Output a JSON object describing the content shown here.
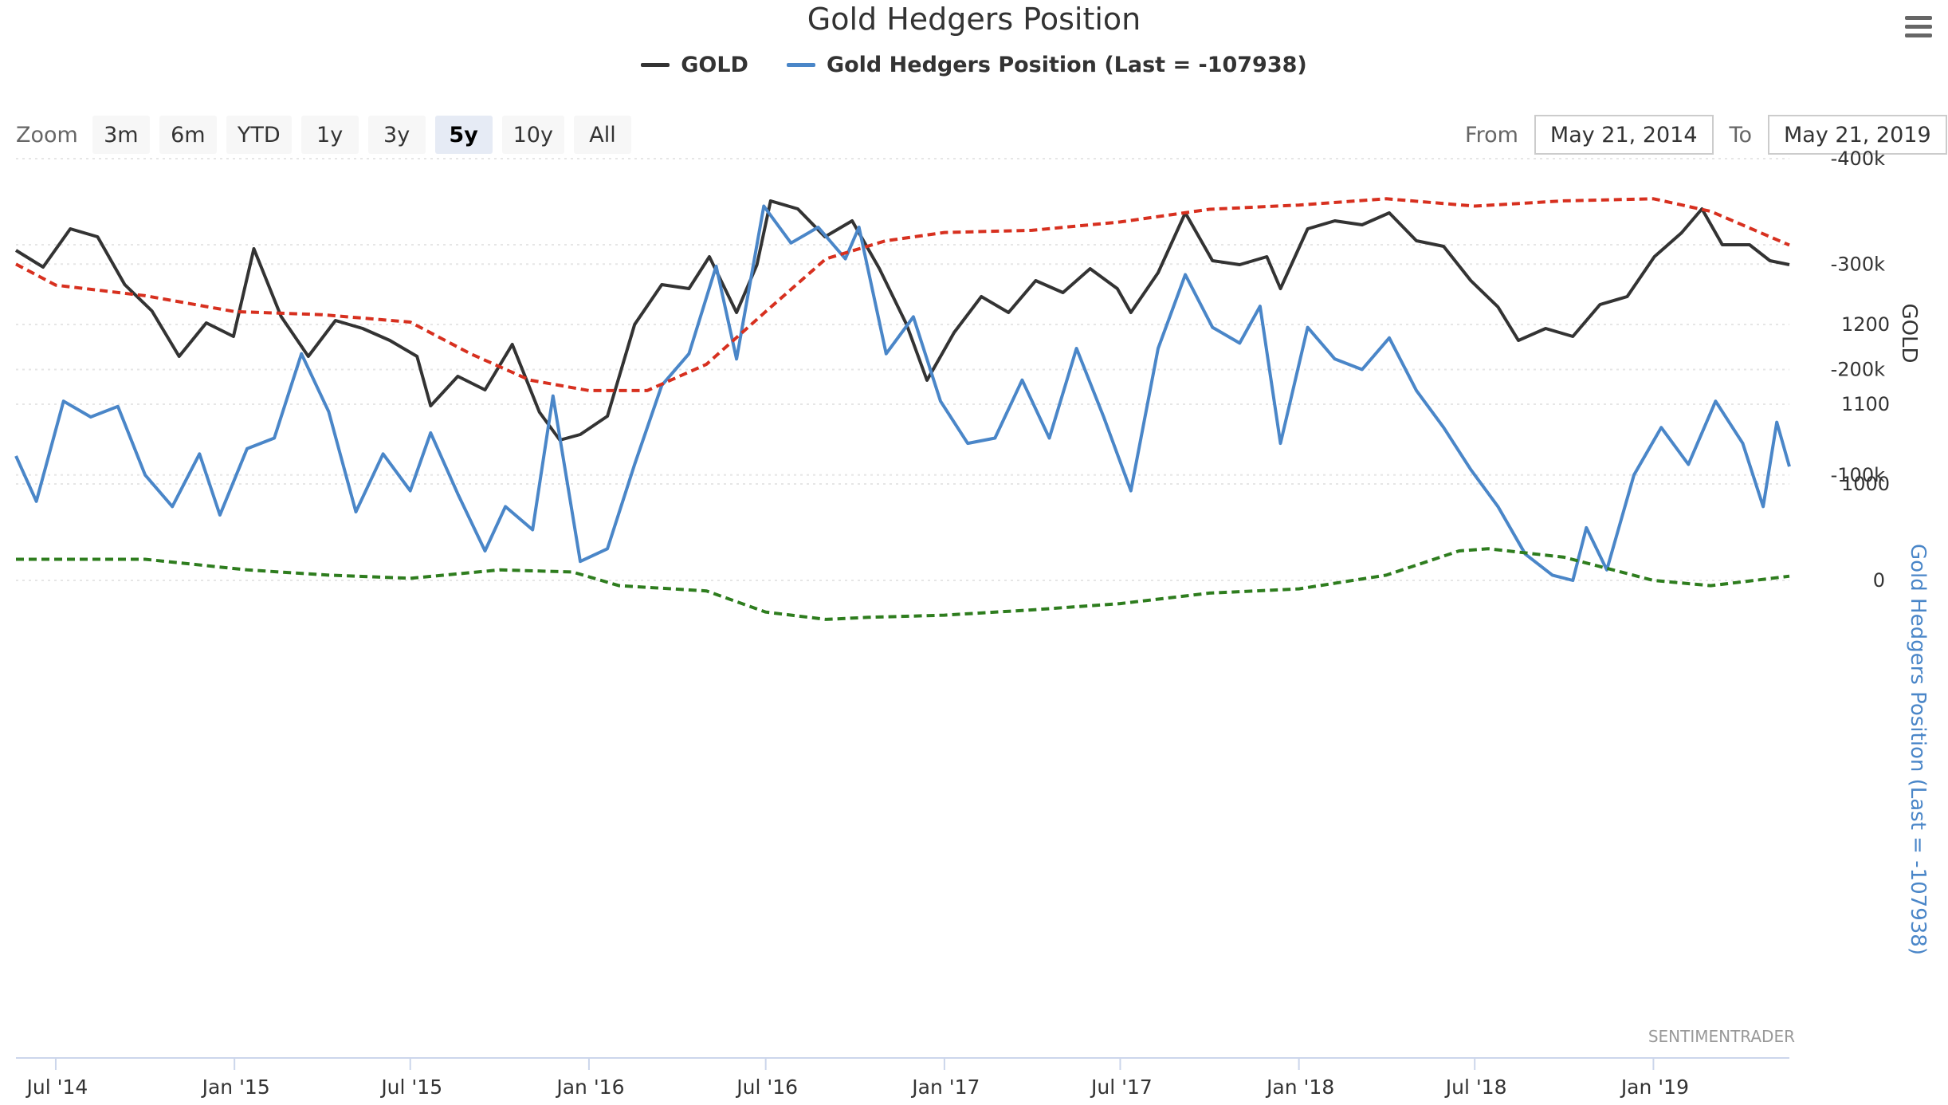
{
  "title": "Gold Hedgers Position",
  "legend": {
    "gold_label": "GOLD",
    "hedgers_label": "Gold Hedgers Position (Last = -107938)"
  },
  "zoom": {
    "label": "Zoom",
    "buttons": [
      "3m",
      "6m",
      "YTD",
      "1y",
      "3y",
      "5y",
      "10y",
      "All"
    ],
    "active": "5y"
  },
  "range": {
    "from_label": "From",
    "from_value": "May 21, 2014",
    "to_label": "To",
    "to_value": "May 21, 2019"
  },
  "credit": "SENTIMENTRADER",
  "menu_icon": "hamburger-menu-icon",
  "colors": {
    "gold": "#333333",
    "hedgers": "#4a86c8",
    "upper_band": "#2e7d1e",
    "lower_band": "#d7301f",
    "hedgers_axis_text": "#4a86c8"
  },
  "chart_data": {
    "type": "line",
    "title": "Gold Hedgers Position",
    "x_ticks": [
      "Jul '14",
      "Jan '15",
      "Jul '15",
      "Jan '16",
      "Jul '16",
      "Jan '17",
      "Jul '17",
      "Jan '18",
      "Jul '18",
      "Jan '19"
    ],
    "x_range": [
      "2014-05-21",
      "2019-05-21"
    ],
    "grid": true,
    "legend_position": "top-center",
    "y_axes": [
      {
        "name": "GOLD",
        "ticks": [
          "1200",
          "1100",
          "1000"
        ],
        "range": [
          1000,
          1400
        ]
      },
      {
        "name": "Gold Hedgers Position (Last = -107938)",
        "ticks": [
          "0",
          "-100k",
          "-200k",
          "-300k",
          "-400k"
        ],
        "range": [
          -400000,
          0
        ]
      }
    ],
    "series": [
      {
        "name": "GOLD",
        "axis": 0,
        "points": [
          [
            "2014-05-21",
            1293
          ],
          [
            "2014-06-18",
            1272
          ],
          [
            "2014-07-16",
            1320
          ],
          [
            "2014-08-13",
            1310
          ],
          [
            "2014-09-10",
            1250
          ],
          [
            "2014-10-08",
            1217
          ],
          [
            "2014-11-05",
            1160
          ],
          [
            "2014-12-03",
            1202
          ],
          [
            "2014-12-31",
            1185
          ],
          [
            "2015-01-21",
            1295
          ],
          [
            "2015-02-18",
            1210
          ],
          [
            "2015-03-18",
            1160
          ],
          [
            "2015-04-15",
            1205
          ],
          [
            "2015-05-13",
            1195
          ],
          [
            "2015-06-10",
            1180
          ],
          [
            "2015-07-08",
            1160
          ],
          [
            "2015-07-22",
            1098
          ],
          [
            "2015-08-19",
            1135
          ],
          [
            "2015-09-16",
            1118
          ],
          [
            "2015-10-14",
            1175
          ],
          [
            "2015-11-11",
            1090
          ],
          [
            "2015-12-02",
            1055
          ],
          [
            "2015-12-23",
            1062
          ],
          [
            "2016-01-20",
            1085
          ],
          [
            "2016-02-17",
            1200
          ],
          [
            "2016-03-16",
            1250
          ],
          [
            "2016-04-13",
            1245
          ],
          [
            "2016-05-04",
            1285
          ],
          [
            "2016-06-01",
            1215
          ],
          [
            "2016-06-22",
            1275
          ],
          [
            "2016-07-06",
            1355
          ],
          [
            "2016-08-03",
            1345
          ],
          [
            "2016-08-31",
            1310
          ],
          [
            "2016-09-28",
            1330
          ],
          [
            "2016-10-26",
            1270
          ],
          [
            "2016-11-23",
            1200
          ],
          [
            "2016-12-14",
            1130
          ],
          [
            "2017-01-11",
            1190
          ],
          [
            "2017-02-08",
            1235
          ],
          [
            "2017-03-08",
            1215
          ],
          [
            "2017-04-05",
            1255
          ],
          [
            "2017-05-03",
            1240
          ],
          [
            "2017-05-31",
            1270
          ],
          [
            "2017-06-28",
            1245
          ],
          [
            "2017-07-12",
            1215
          ],
          [
            "2017-08-09",
            1265
          ],
          [
            "2017-09-06",
            1340
          ],
          [
            "2017-10-04",
            1280
          ],
          [
            "2017-11-01",
            1275
          ],
          [
            "2017-11-29",
            1285
          ],
          [
            "2017-12-13",
            1245
          ],
          [
            "2018-01-10",
            1320
          ],
          [
            "2018-02-07",
            1330
          ],
          [
            "2018-03-07",
            1325
          ],
          [
            "2018-04-04",
            1340
          ],
          [
            "2018-05-02",
            1305
          ],
          [
            "2018-05-30",
            1298
          ],
          [
            "2018-06-27",
            1255
          ],
          [
            "2018-07-25",
            1222
          ],
          [
            "2018-08-15",
            1180
          ],
          [
            "2018-09-12",
            1195
          ],
          [
            "2018-10-10",
            1185
          ],
          [
            "2018-11-07",
            1225
          ],
          [
            "2018-12-05",
            1235
          ],
          [
            "2019-01-02",
            1285
          ],
          [
            "2019-01-30",
            1315
          ],
          [
            "2019-02-20",
            1345
          ],
          [
            "2019-03-13",
            1300
          ],
          [
            "2019-04-10",
            1300
          ],
          [
            "2019-05-01",
            1280
          ],
          [
            "2019-05-21",
            1275
          ]
        ]
      },
      {
        "name": "Gold Hedgers Position (Last = -107938)",
        "axis": 1,
        "points": [
          [
            "2014-05-21",
            -118000
          ],
          [
            "2014-06-11",
            -75000
          ],
          [
            "2014-07-09",
            -170000
          ],
          [
            "2014-08-06",
            -155000
          ],
          [
            "2014-09-03",
            -165000
          ],
          [
            "2014-10-01",
            -100000
          ],
          [
            "2014-10-29",
            -70000
          ],
          [
            "2014-11-26",
            -120000
          ],
          [
            "2014-12-17",
            -62000
          ],
          [
            "2015-01-14",
            -125000
          ],
          [
            "2015-02-11",
            -135000
          ],
          [
            "2015-03-11",
            -215000
          ],
          [
            "2015-04-08",
            -160000
          ],
          [
            "2015-05-06",
            -65000
          ],
          [
            "2015-06-03",
            -120000
          ],
          [
            "2015-07-01",
            -85000
          ],
          [
            "2015-07-22",
            -140000
          ],
          [
            "2015-08-19",
            -82000
          ],
          [
            "2015-09-16",
            -28000
          ],
          [
            "2015-10-07",
            -70000
          ],
          [
            "2015-11-04",
            -48000
          ],
          [
            "2015-11-25",
            -175000
          ],
          [
            "2015-12-23",
            -18000
          ],
          [
            "2016-01-20",
            -30000
          ],
          [
            "2016-02-17",
            -110000
          ],
          [
            "2016-03-16",
            -185000
          ],
          [
            "2016-04-13",
            -215000
          ],
          [
            "2016-05-11",
            -298000
          ],
          [
            "2016-06-01",
            -210000
          ],
          [
            "2016-06-29",
            -355000
          ],
          [
            "2016-07-27",
            -320000
          ],
          [
            "2016-08-24",
            -335000
          ],
          [
            "2016-09-21",
            -305000
          ],
          [
            "2016-10-05",
            -335000
          ],
          [
            "2016-11-02",
            -215000
          ],
          [
            "2016-11-30",
            -250000
          ],
          [
            "2016-12-28",
            -170000
          ],
          [
            "2017-01-25",
            -130000
          ],
          [
            "2017-02-22",
            -135000
          ],
          [
            "2017-03-22",
            -190000
          ],
          [
            "2017-04-19",
            -135000
          ],
          [
            "2017-05-17",
            -220000
          ],
          [
            "2017-06-14",
            -155000
          ],
          [
            "2017-07-12",
            -85000
          ],
          [
            "2017-08-09",
            -220000
          ],
          [
            "2017-09-06",
            -290000
          ],
          [
            "2017-10-04",
            -240000
          ],
          [
            "2017-11-01",
            -225000
          ],
          [
            "2017-11-22",
            -260000
          ],
          [
            "2017-12-13",
            -130000
          ],
          [
            "2018-01-10",
            -240000
          ],
          [
            "2018-02-07",
            -210000
          ],
          [
            "2018-03-07",
            -200000
          ],
          [
            "2018-04-04",
            -230000
          ],
          [
            "2018-05-02",
            -180000
          ],
          [
            "2018-05-30",
            -145000
          ],
          [
            "2018-06-27",
            -105000
          ],
          [
            "2018-07-25",
            -70000
          ],
          [
            "2018-08-22",
            -25000
          ],
          [
            "2018-09-19",
            -5000
          ],
          [
            "2018-10-10",
            0
          ],
          [
            "2018-10-24",
            -50000
          ],
          [
            "2018-11-14",
            -10000
          ],
          [
            "2018-12-12",
            -100000
          ],
          [
            "2019-01-09",
            -145000
          ],
          [
            "2019-02-06",
            -110000
          ],
          [
            "2019-03-06",
            -170000
          ],
          [
            "2019-04-03",
            -130000
          ],
          [
            "2019-04-24",
            -70000
          ],
          [
            "2019-05-08",
            -150000
          ],
          [
            "2019-05-21",
            -108000
          ]
        ]
      },
      {
        "name": "",
        "axis": 1,
        "style": "dashed",
        "points": [
          [
            "2014-05-21",
            -20000
          ],
          [
            "2014-10-01",
            -20000
          ],
          [
            "2015-01-14",
            -10000
          ],
          [
            "2015-04-08",
            -5000
          ],
          [
            "2015-07-01",
            -2000
          ],
          [
            "2015-10-01",
            -10000
          ],
          [
            "2015-12-15",
            -8000
          ],
          [
            "2016-02-01",
            5000
          ],
          [
            "2016-05-01",
            10000
          ],
          [
            "2016-07-01",
            30000
          ],
          [
            "2016-09-01",
            37000
          ],
          [
            "2016-10-15",
            35000
          ],
          [
            "2017-01-01",
            33000
          ],
          [
            "2017-04-01",
            28000
          ],
          [
            "2017-07-01",
            22000
          ],
          [
            "2017-10-01",
            12000
          ],
          [
            "2018-01-01",
            8000
          ],
          [
            "2018-04-01",
            -5000
          ],
          [
            "2018-06-15",
            -28000
          ],
          [
            "2018-07-15",
            -30000
          ],
          [
            "2018-10-01",
            -22000
          ],
          [
            "2019-01-01",
            0
          ],
          [
            "2019-03-01",
            5000
          ],
          [
            "2019-05-21",
            -4000
          ]
        ]
      },
      {
        "name": "",
        "axis": 1,
        "style": "dashed",
        "points": [
          [
            "2014-05-21",
            -300000
          ],
          [
            "2014-07-01",
            -280000
          ],
          [
            "2014-10-01",
            -270000
          ],
          [
            "2015-01-01",
            -255000
          ],
          [
            "2015-04-01",
            -252000
          ],
          [
            "2015-07-01",
            -245000
          ],
          [
            "2015-09-01",
            -215000
          ],
          [
            "2015-11-01",
            -190000
          ],
          [
            "2016-01-01",
            -180000
          ],
          [
            "2016-03-01",
            -180000
          ],
          [
            "2016-05-01",
            -205000
          ],
          [
            "2016-07-01",
            -255000
          ],
          [
            "2016-09-01",
            -305000
          ],
          [
            "2016-11-01",
            -322000
          ],
          [
            "2017-01-01",
            -330000
          ],
          [
            "2017-04-01",
            -332000
          ],
          [
            "2017-07-01",
            -340000
          ],
          [
            "2017-10-01",
            -352000
          ],
          [
            "2018-01-01",
            -356000
          ],
          [
            "2018-04-01",
            -362000
          ],
          [
            "2018-07-01",
            -355000
          ],
          [
            "2018-10-01",
            -360000
          ],
          [
            "2019-01-01",
            -362000
          ],
          [
            "2019-03-01",
            -350000
          ],
          [
            "2019-05-21",
            -318000
          ]
        ]
      }
    ]
  }
}
